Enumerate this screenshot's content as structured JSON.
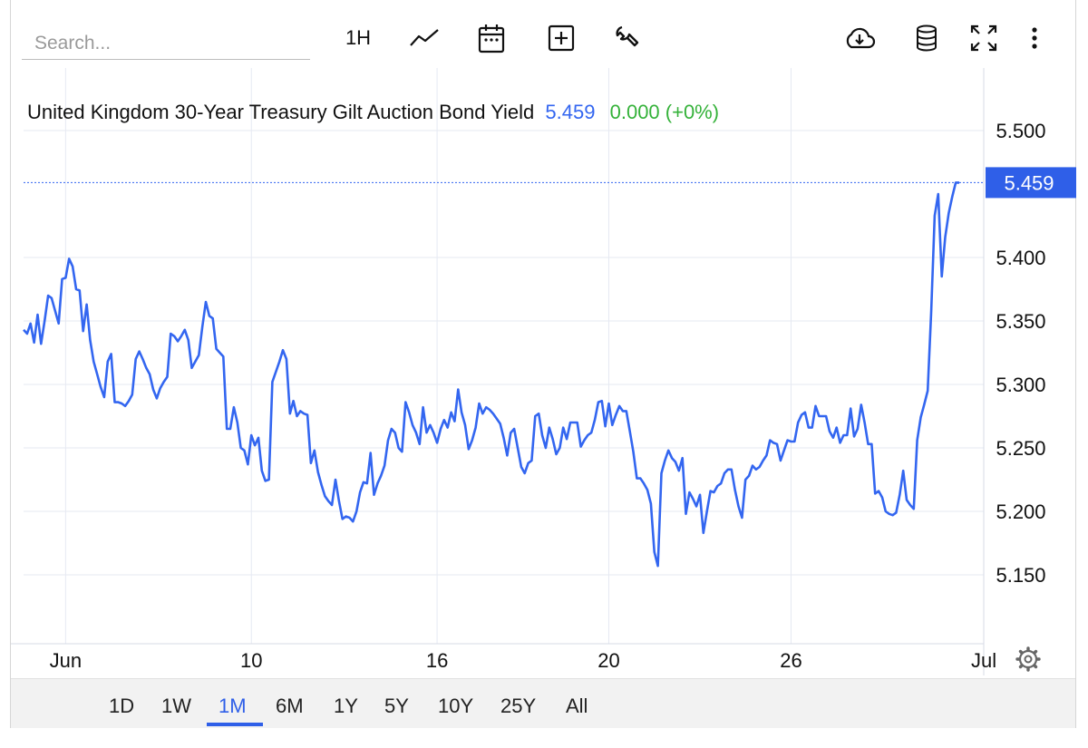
{
  "toolbar": {
    "search_placeholder": "Search...",
    "interval_label": "1H",
    "icons": [
      "line-chart-icon",
      "calendar-icon",
      "add-indicator-icon",
      "wrench-icon",
      "download-icon",
      "database-icon",
      "fullscreen-icon",
      "more-icon"
    ]
  },
  "colors": {
    "line": "#3366f0",
    "up": "#35b23a",
    "accent": "#2f5fe8",
    "grid": "#e6e9f2"
  },
  "chart_data": {
    "type": "line",
    "title": "United Kingdom 30-Year Treasury Gilt Auction Bond Yield",
    "last_value": "5.459",
    "change_text": "0.000 (+0%)",
    "price_badge": "5.459",
    "ylim": [
      5.1,
      5.53
    ],
    "y_ticks": [
      5.15,
      5.2,
      5.25,
      5.3,
      5.35,
      5.4,
      5.5
    ],
    "y_tick_labels": [
      "5.150",
      "5.200",
      "5.250",
      "5.300",
      "5.350",
      "5.400",
      "5.500"
    ],
    "x_tick_labels": [
      "Jun",
      "10",
      "16",
      "20",
      "26",
      "Jul"
    ],
    "x_tick_index": [
      12,
      65,
      118,
      167,
      219,
      274
    ],
    "values": [
      5.343,
      5.34,
      5.348,
      5.333,
      5.355,
      5.332,
      5.35,
      5.37,
      5.368,
      5.358,
      5.348,
      5.383,
      5.384,
      5.399,
      5.393,
      5.375,
      5.374,
      5.342,
      5.363,
      5.335,
      5.318,
      5.308,
      5.298,
      5.29,
      5.318,
      5.324,
      5.286,
      5.286,
      5.285,
      5.283,
      5.287,
      5.292,
      5.32,
      5.326,
      5.32,
      5.313,
      5.308,
      5.296,
      5.289,
      5.297,
      5.302,
      5.306,
      5.34,
      5.338,
      5.334,
      5.338,
      5.343,
      5.335,
      5.313,
      5.318,
      5.323,
      5.345,
      5.365,
      5.354,
      5.352,
      5.328,
      5.325,
      5.322,
      5.265,
      5.265,
      5.282,
      5.27,
      5.25,
      5.248,
      5.237,
      5.26,
      5.252,
      5.258,
      5.232,
      5.224,
      5.225,
      5.302,
      5.31,
      5.318,
      5.327,
      5.32,
      5.277,
      5.287,
      5.275,
      5.279,
      5.277,
      5.276,
      5.238,
      5.248,
      5.231,
      5.221,
      5.212,
      5.208,
      5.205,
      5.225,
      5.208,
      5.194,
      5.196,
      5.195,
      5.192,
      5.2,
      5.215,
      5.223,
      5.222,
      5.246,
      5.213,
      5.222,
      5.228,
      5.236,
      5.256,
      5.265,
      5.262,
      5.25,
      5.247,
      5.286,
      5.278,
      5.268,
      5.262,
      5.253,
      5.282,
      5.262,
      5.268,
      5.262,
      5.254,
      5.265,
      5.272,
      5.266,
      5.278,
      5.271,
      5.296,
      5.278,
      5.268,
      5.249,
      5.256,
      5.266,
      5.285,
      5.277,
      5.282,
      5.28,
      5.277,
      5.273,
      5.269,
      5.258,
      5.244,
      5.262,
      5.265,
      5.25,
      5.235,
      5.23,
      5.238,
      5.24,
      5.275,
      5.277,
      5.26,
      5.25,
      5.266,
      5.257,
      5.245,
      5.25,
      5.266,
      5.257,
      5.27,
      5.27,
      5.27,
      5.251,
      5.256,
      5.26,
      5.262,
      5.272,
      5.286,
      5.287,
      5.267,
      5.285,
      5.268,
      5.276,
      5.283,
      5.279,
      5.279,
      5.263,
      5.247,
      5.226,
      5.226,
      5.222,
      5.217,
      5.206,
      5.168,
      5.157,
      5.23,
      5.24,
      5.248,
      5.242,
      5.239,
      5.232,
      5.242,
      5.198,
      5.215,
      5.21,
      5.204,
      5.213,
      5.183,
      5.2,
      5.216,
      5.215,
      5.22,
      5.222,
      5.23,
      5.233,
      5.233,
      5.217,
      5.204,
      5.195,
      5.225,
      5.228,
      5.236,
      5.233,
      5.235,
      5.24,
      5.244,
      5.256,
      5.254,
      5.253,
      5.24,
      5.248,
      5.256,
      5.255,
      5.255,
      5.27,
      5.276,
      5.278,
      5.266,
      5.266,
      5.283,
      5.275,
      5.275,
      5.275,
      5.263,
      5.258,
      5.266,
      5.254,
      5.26,
      5.26,
      5.281,
      5.259,
      5.265,
      5.284,
      5.27,
      5.253,
      5.253,
      5.214,
      5.216,
      5.211,
      5.2,
      5.198,
      5.197,
      5.199,
      5.213,
      5.232,
      5.209,
      5.205,
      5.202,
      5.256,
      5.274,
      5.284,
      5.295,
      5.358,
      5.433,
      5.45,
      5.385,
      5.416,
      5.435,
      5.448,
      5.459,
      5.459
    ]
  },
  "range_buttons": [
    "1D",
    "1W",
    "1M",
    "6M",
    "1Y",
    "5Y",
    "10Y",
    "25Y",
    "All"
  ],
  "active_range": "1M"
}
